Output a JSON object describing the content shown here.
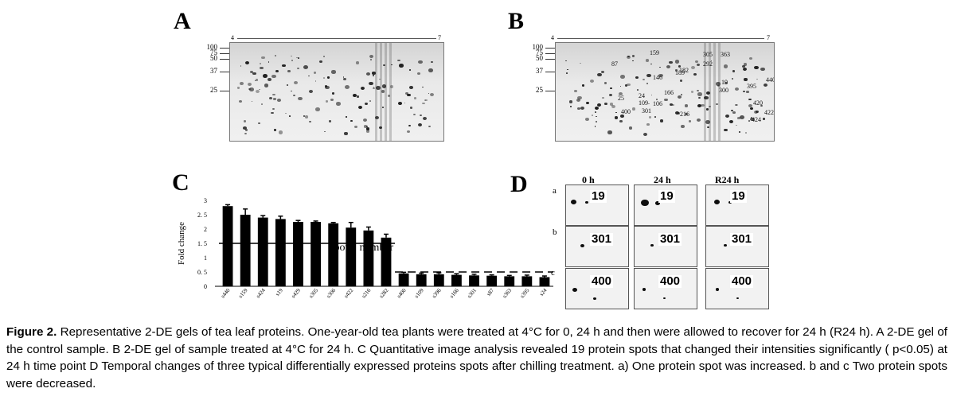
{
  "panels": {
    "A": {
      "letter": "A",
      "ph_left": "4",
      "ph_right": "7",
      "mw_markers": [
        "100",
        "75",
        "50",
        "37",
        "25"
      ]
    },
    "B": {
      "letter": "B",
      "ph_left": "4",
      "ph_right": "7",
      "mw_markers": [
        "100",
        "75",
        "50",
        "37",
        "25"
      ],
      "spot_labels": [
        "159",
        "305",
        "363",
        "87",
        "292",
        "182",
        "189",
        "146",
        "19",
        "395",
        "440",
        "300",
        "166",
        "25",
        "24",
        "109",
        "106",
        "420",
        "400",
        "301",
        "216",
        "422",
        "424"
      ]
    },
    "C": {
      "letter": "C"
    },
    "D": {
      "letter": "D",
      "columns": [
        "0 h",
        "24 h",
        "R24 h"
      ],
      "rows": [
        {
          "label": "a",
          "spot": "19"
        },
        {
          "label": "b",
          "spot": "301"
        },
        {
          "label": "c",
          "spot": "400"
        }
      ]
    }
  },
  "chart_data": {
    "type": "bar",
    "categories": [
      "s440",
      "s159",
      "s424",
      "s19",
      "s429",
      "s305",
      "s306",
      "s422",
      "s216",
      "s282",
      "s400",
      "s109",
      "s396",
      "s166",
      "s301",
      "s87",
      "s363",
      "s395",
      "s24"
    ],
    "values": [
      2.8,
      2.5,
      2.4,
      2.35,
      2.25,
      2.25,
      2.2,
      2.05,
      1.95,
      1.7,
      0.45,
      0.42,
      0.42,
      0.4,
      0.38,
      0.37,
      0.35,
      0.35,
      0.32
    ],
    "errors": [
      0.05,
      0.2,
      0.07,
      0.1,
      0.05,
      0.03,
      0.03,
      0.18,
      0.12,
      0.12,
      0.04,
      0.04,
      0.05,
      0.04,
      0.04,
      0.03,
      0.03,
      0.04,
      0.04
    ],
    "xlabel": "Spot    number",
    "ylabel": "Fold change",
    "yticks": [
      "0",
      "0. 5",
      "1",
      "1. 5",
      "2",
      "2. 5",
      "3"
    ],
    "ylim": [
      0,
      3
    ],
    "reference_lines": [
      1.5,
      0.5
    ],
    "colors": {
      "bars": "#000000"
    }
  },
  "caption": {
    "label": "Figure 2.",
    "text": " Representative 2-DE gels of tea leaf proteins. One-year-old tea plants were treated at 4°C for 0, 24 h and then were allowed to recover for 24 h (R24 h). A 2-DE gel of the control sample. B 2-DE gel of sample treated at 4°C for 24 h. C Quantitative image analysis revealed 19 protein spots that changed their intensities significantly ( p<0.05) at 24 h time point D Temporal changes of three typical differentially expressed proteins spots after chilling treatment. a) One protein spot was increased. b and c Two protein spots were decreased."
  }
}
